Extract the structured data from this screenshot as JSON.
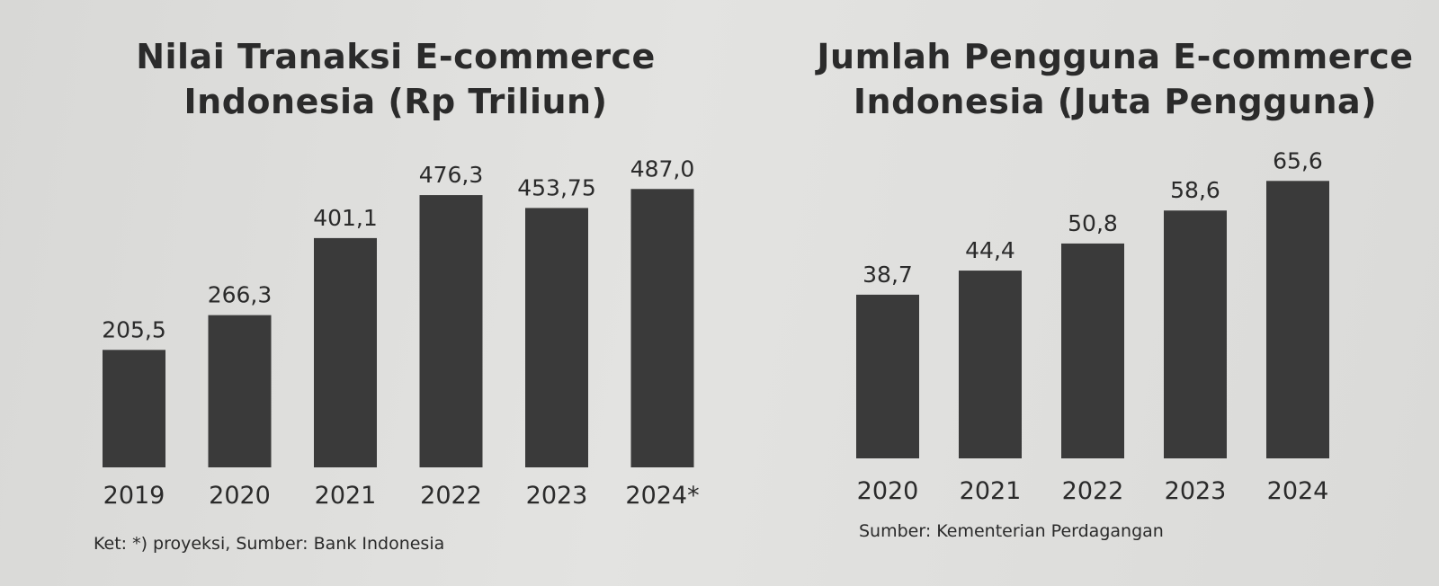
{
  "chart_data": [
    {
      "type": "bar",
      "title": "Nilai Tranaksi E-commerce Indonesia (Rp Triliun)",
      "categories": [
        "2019",
        "2020",
        "2021",
        "2022",
        "2023",
        "2024*"
      ],
      "values": [
        205.5,
        266.3,
        401.1,
        476.3,
        453.75,
        487.0
      ],
      "value_labels": [
        "205,5",
        "266,3",
        "401,1",
        "476,3",
        "453,75",
        "487,0"
      ],
      "ylim": [
        0,
        500
      ],
      "grid": false,
      "bar_color": "#3a3a3a",
      "note": "Ket: *) proyeksi, Sumber: Bank Indonesia"
    },
    {
      "type": "bar",
      "title": "Jumlah Pengguna E-commerce Indonesia (Juta Pengguna)",
      "categories": [
        "2020",
        "2021",
        "2022",
        "2023",
        "2024"
      ],
      "values": [
        38.7,
        44.4,
        50.8,
        58.6,
        65.6
      ],
      "value_labels": [
        "38,7",
        "44,4",
        "50,8",
        "58,6",
        "65,6"
      ],
      "ylim": [
        0,
        68
      ],
      "grid": false,
      "bar_color": "#3a3a3a",
      "note": "Sumber: Kementerian Perdagangan"
    }
  ]
}
